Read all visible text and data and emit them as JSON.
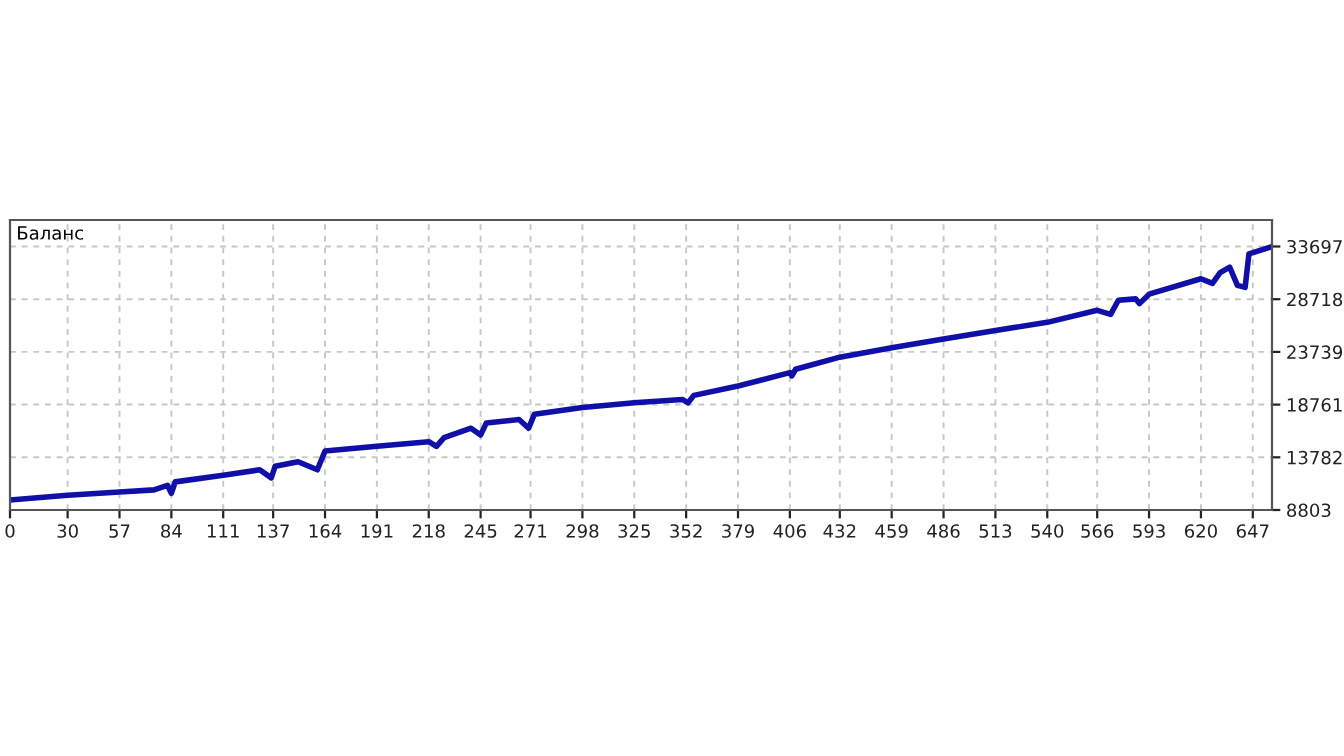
{
  "chart_data": {
    "type": "line",
    "title": "Баланс",
    "x": [
      0,
      30,
      57,
      75,
      82,
      84,
      86,
      111,
      130,
      136,
      138,
      150,
      160,
      164,
      191,
      218,
      222,
      226,
      240,
      245,
      248,
      265,
      270,
      273,
      298,
      325,
      350,
      353,
      356,
      379,
      406,
      407,
      409,
      432,
      459,
      486,
      513,
      540,
      566,
      573,
      577,
      586,
      588,
      593,
      620,
      626,
      630,
      635,
      639,
      643,
      645,
      656
    ],
    "series": [
      {
        "color": "#1010a8",
        "values": [
          9753,
          10190,
          10513,
          10703,
          11140,
          10380,
          11460,
          12090,
          12600,
          11840,
          12930,
          13360,
          12600,
          14370,
          14820,
          15260,
          14820,
          15640,
          16530,
          15890,
          17030,
          17350,
          16530,
          17860,
          18490,
          18930,
          19250,
          18930,
          19630,
          20520,
          21780,
          21470,
          22100,
          23240,
          24130,
          24950,
          25770,
          26530,
          27670,
          27290,
          28620,
          28750,
          28300,
          29190,
          30650,
          30210,
          31220,
          31740,
          30020,
          29830,
          33000,
          33630
        ]
      }
    ],
    "xlim": [
      0,
      657
    ],
    "ylim": [
      8803,
      36200
    ],
    "xticks": [
      0,
      30,
      57,
      84,
      111,
      137,
      164,
      191,
      218,
      245,
      271,
      298,
      325,
      352,
      379,
      406,
      432,
      459,
      486,
      513,
      540,
      566,
      593,
      620,
      647
    ],
    "yticks": [
      8803,
      13782,
      18761,
      23739,
      28718,
      33697
    ],
    "grid": true,
    "legend": false,
    "marker": "none",
    "line_style": "solid"
  }
}
